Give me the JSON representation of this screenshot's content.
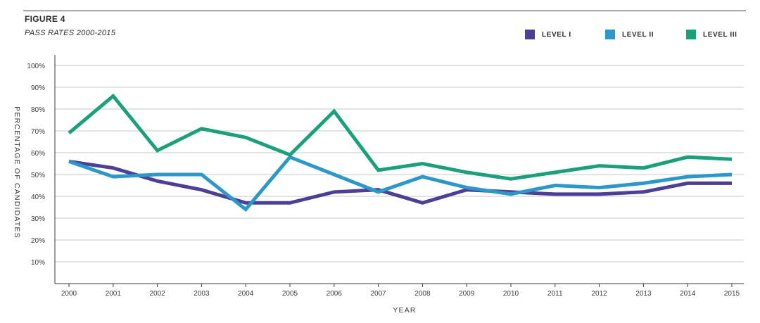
{
  "figure_label": "FIGURE 4",
  "legend": [
    {
      "label": "LEVEL I",
      "color": "#4c3f95"
    },
    {
      "label": "LEVEL II",
      "color": "#2b98c9"
    },
    {
      "label": "LEVEL III",
      "color": "#1aa07a"
    }
  ],
  "chart_data": {
    "type": "line",
    "title": "PASS RATES 2000-2015",
    "xlabel": "YEAR",
    "ylabel": "PERCENTAGE OF CANDIDATES",
    "ylim": [
      0,
      100
    ],
    "yticks": [
      "10%",
      "20%",
      "30%",
      "40%",
      "50%",
      "60%",
      "70%",
      "80%",
      "90%",
      "100%"
    ],
    "categories": [
      "2000",
      "2001",
      "2002",
      "2003",
      "2004",
      "2005",
      "2006",
      "2007",
      "2008",
      "2009",
      "2010",
      "2011",
      "2012",
      "2013",
      "2014",
      "2015"
    ],
    "series": [
      {
        "name": "LEVEL I",
        "color": "#4c3f95",
        "values": [
          56,
          53,
          47,
          43,
          37,
          37,
          42,
          43,
          37,
          43,
          42,
          41,
          41,
          42,
          46,
          46
        ]
      },
      {
        "name": "LEVEL II",
        "color": "#2b98c9",
        "values": [
          56,
          49,
          50,
          50,
          34,
          58,
          50,
          42,
          49,
          44,
          41,
          45,
          44,
          46,
          49,
          50
        ]
      },
      {
        "name": "LEVEL III",
        "color": "#1aa07a",
        "values": [
          69,
          86,
          61,
          71,
          67,
          59,
          79,
          52,
          55,
          51,
          48,
          51,
          54,
          53,
          58,
          57
        ]
      }
    ]
  }
}
